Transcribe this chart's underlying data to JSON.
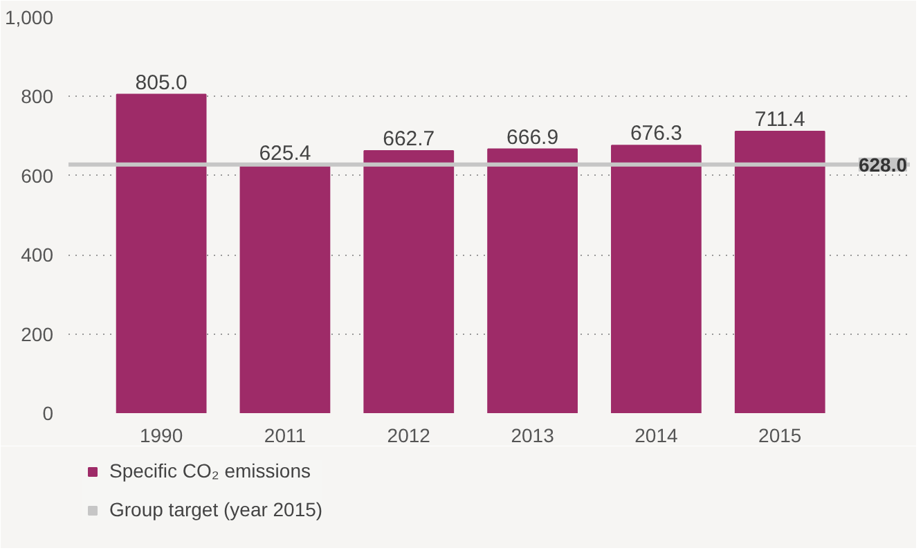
{
  "chart_data": {
    "type": "bar",
    "categories": [
      "1990",
      "2011",
      "2012",
      "2013",
      "2014",
      "2015"
    ],
    "series": [
      {
        "name": "Specific CO₂ emissions",
        "color": "#9e2b68",
        "values": [
          805.0,
          625.4,
          662.7,
          666.9,
          676.3,
          711.4
        ],
        "value_labels": [
          "805.0",
          "625.4",
          "662.7",
          "666.9",
          "676.3",
          "711.4"
        ]
      }
    ],
    "ylim": [
      0,
      1000
    ],
    "yticks": [
      0,
      200,
      400,
      600,
      800,
      {
        "value": 1000,
        "label": "1,000"
      }
    ],
    "grid": "y",
    "legend": "bottom left",
    "ref_lines": [
      {
        "axis": "y",
        "value": 628.0,
        "label": "Group target (year 2015)",
        "color": "#c6c6c6"
      }
    ],
    "annotations": [
      {
        "text": "628.0",
        "y": 628.0
      }
    ]
  }
}
